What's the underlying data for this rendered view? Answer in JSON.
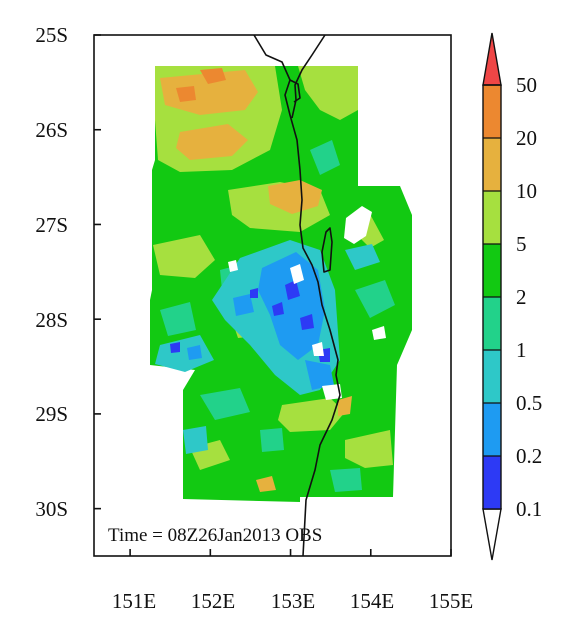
{
  "map": {
    "y_ticks": [
      "25S",
      "26S",
      "27S",
      "28S",
      "29S",
      "30S"
    ],
    "x_ticks": [
      "151E",
      "152E",
      "153E",
      "154E",
      "155E"
    ],
    "annotation": "Time = 08Z26Jan2013 OBS",
    "extent": {
      "lon_min": 150.55,
      "lon_max": 155.0,
      "lat_north": -25.0,
      "lat_south": -30.5
    }
  },
  "colorbar": {
    "labels": [
      "0.1",
      "0.2",
      "0.5",
      "1",
      "2",
      "5",
      "10",
      "20",
      "50"
    ],
    "colors": [
      "#ffffff",
      "#2d3af5",
      "#1e9bf2",
      "#2ec8c8",
      "#22d28a",
      "#12c912",
      "#a6e03f",
      "#e6b13e",
      "#ec8830",
      "#ef4646"
    ]
  },
  "chart_data": {
    "type": "heatmap",
    "title": "",
    "xlabel": "",
    "ylabel": "",
    "xlim": [
      150.55,
      155.0
    ],
    "ylim": [
      -30.5,
      -25.0
    ],
    "x_ticks": [
      "151E",
      "152E",
      "153E",
      "154E",
      "155E"
    ],
    "y_ticks": [
      "25S",
      "26S",
      "27S",
      "28S",
      "29S",
      "30S"
    ],
    "levels": [
      0.1,
      0.2,
      0.5,
      1,
      2,
      5,
      10,
      20,
      50
    ],
    "annotation": "Time = 08Z26Jan2013 OBS"
  }
}
